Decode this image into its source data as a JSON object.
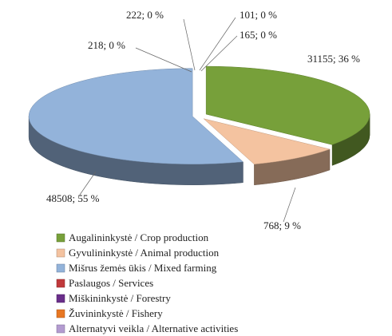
{
  "chart_data": {
    "type": "pie3d",
    "categories": [
      "Augalininkystė / Crop production",
      "Gyvulininkystė / Animal production",
      "Mišrus žemės ūkis / Mixed farming",
      "Paslaugos / Services",
      "Miškininkystė / Forestry",
      "Žuvininkystė / Fishery",
      "Alternatyvi veikla / Alternative activities"
    ],
    "values": [
      36,
      9,
      55,
      0,
      0,
      0,
      0
    ],
    "value_labels": [
      "31155; 36 %",
      "768; 9 %",
      "48508; 55 %",
      "218; 0 %",
      "222; 0 %",
      "101; 0 %",
      "165; 0 %"
    ],
    "colors": [
      "#77a03a",
      "#f4c3a0",
      "#93b3da",
      "#c0393b",
      "#6a2e8a",
      "#e87722",
      "#b39bd0"
    ],
    "legend": "bottom"
  }
}
